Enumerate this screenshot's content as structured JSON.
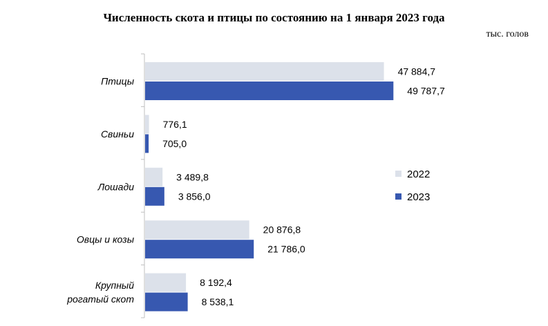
{
  "chart_data": {
    "type": "bar",
    "orientation": "horizontal",
    "title": "Численность скота и птицы по состоянию на 1 января 2023 года",
    "unit": "тыс. голов",
    "categories": [
      "Птицы",
      "Свиньи",
      "Лошади",
      "Овцы и козы",
      "Крупный рогатый скот"
    ],
    "category_lines": [
      [
        "Птицы"
      ],
      [
        "Свиньи"
      ],
      [
        "Лошади"
      ],
      [
        "Овцы и козы"
      ],
      [
        "Крупный",
        "рогатый скот"
      ]
    ],
    "series": [
      {
        "name": "2022",
        "color": "#dce1ea",
        "values": [
          47884.7,
          776.1,
          3489.8,
          20876.8,
          8192.4
        ],
        "labels": [
          "47 884,7",
          "776,1",
          "3 489,8",
          "20 876,8",
          "8 192,4"
        ]
      },
      {
        "name": "2023",
        "color": "#3758b0",
        "values": [
          49787.7,
          705.0,
          3856.0,
          21786.0,
          8538.1
        ],
        "labels": [
          "49 787,7",
          "705,0",
          "3 856,0",
          "21 786,0",
          "8 538,1"
        ]
      }
    ],
    "xlim": [
      0,
      60000
    ],
    "legend": "right",
    "grid": false
  }
}
